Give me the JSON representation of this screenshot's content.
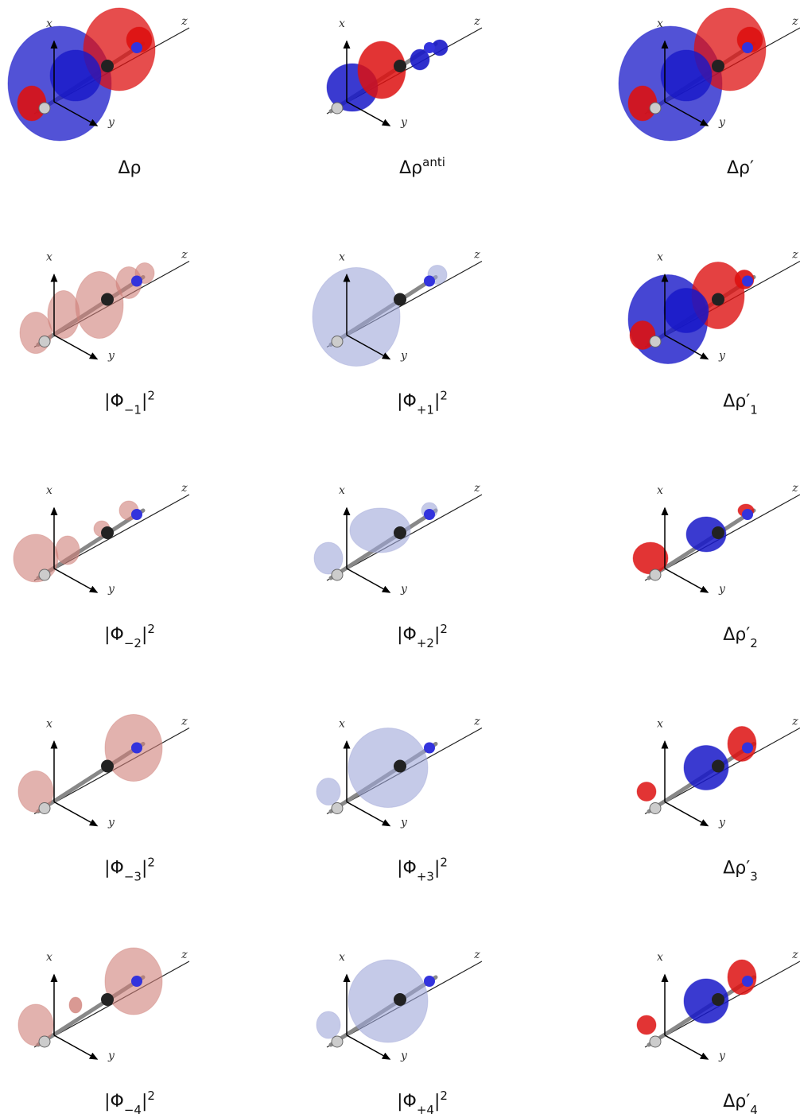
{
  "panels": [
    {
      "axes": [
        "x",
        "y",
        "z"
      ],
      "caption": [
        {
          "t": "Δρ"
        }
      ]
    },
    {
      "axes": [
        "x",
        "y",
        "z"
      ],
      "caption": [
        {
          "t": "Δρ"
        },
        {
          "t": "anti",
          "pos": "sup"
        }
      ]
    },
    {
      "axes": [
        "x",
        "y",
        "z"
      ],
      "caption": [
        {
          "t": "Δρ′"
        }
      ]
    },
    {
      "axes": [
        "x",
        "y",
        "z"
      ],
      "caption": [
        {
          "t": "|Φ"
        },
        {
          "t": "−1",
          "pos": "sub"
        },
        {
          "t": "|"
        },
        {
          "t": "2",
          "pos": "sup"
        }
      ]
    },
    {
      "axes": [
        "x",
        "y",
        "z"
      ],
      "caption": [
        {
          "t": "|Φ"
        },
        {
          "t": "+1",
          "pos": "sub"
        },
        {
          "t": "|"
        },
        {
          "t": "2",
          "pos": "sup"
        }
      ]
    },
    {
      "axes": [
        "x",
        "y",
        "z"
      ],
      "caption": [
        {
          "t": "Δρ′"
        },
        {
          "t": "1",
          "pos": "sub"
        }
      ]
    },
    {
      "axes": [
        "x",
        "y",
        "z"
      ],
      "caption": [
        {
          "t": "|Φ"
        },
        {
          "t": "−2",
          "pos": "sub"
        },
        {
          "t": "|"
        },
        {
          "t": "2",
          "pos": "sup"
        }
      ]
    },
    {
      "axes": [
        "x",
        "y",
        "z"
      ],
      "caption": [
        {
          "t": "|Φ"
        },
        {
          "t": "+2",
          "pos": "sub"
        },
        {
          "t": "|"
        },
        {
          "t": "2",
          "pos": "sup"
        }
      ]
    },
    {
      "axes": [
        "x",
        "y",
        "z"
      ],
      "caption": [
        {
          "t": "Δρ′"
        },
        {
          "t": "2",
          "pos": "sub"
        }
      ]
    },
    {
      "axes": [
        "x",
        "y",
        "z"
      ],
      "caption": [
        {
          "t": "|Φ"
        },
        {
          "t": "−3",
          "pos": "sub"
        },
        {
          "t": "|"
        },
        {
          "t": "2",
          "pos": "sup"
        }
      ]
    },
    {
      "axes": [
        "x",
        "y",
        "z"
      ],
      "caption": [
        {
          "t": "|Φ"
        },
        {
          "t": "+3",
          "pos": "sub"
        },
        {
          "t": "|"
        },
        {
          "t": "2",
          "pos": "sup"
        }
      ]
    },
    {
      "axes": [
        "x",
        "y",
        "z"
      ],
      "caption": [
        {
          "t": "Δρ′"
        },
        {
          "t": "3",
          "pos": "sub"
        }
      ]
    },
    {
      "axes": [
        "x",
        "y",
        "z"
      ],
      "caption": [
        {
          "t": "|Φ"
        },
        {
          "t": "−4",
          "pos": "sub"
        },
        {
          "t": "|"
        },
        {
          "t": "2",
          "pos": "sup"
        }
      ]
    },
    {
      "axes": [
        "x",
        "y",
        "z"
      ],
      "caption": [
        {
          "t": "|Φ"
        },
        {
          "t": "+4",
          "pos": "sub"
        },
        {
          "t": "|"
        },
        {
          "t": "2",
          "pos": "sup"
        }
      ]
    },
    {
      "axes": [
        "x",
        "y",
        "z"
      ],
      "caption": [
        {
          "t": "Δρ′"
        },
        {
          "t": "4",
          "pos": "sub"
        }
      ]
    }
  ]
}
